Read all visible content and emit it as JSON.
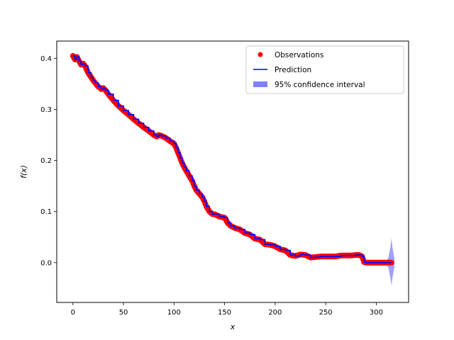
{
  "chart_data": {
    "type": "scatter",
    "title": "",
    "xlabel": "x",
    "ylabel": "f(x)",
    "xlim": [
      -16,
      332
    ],
    "ylim": [
      -0.078,
      0.434
    ],
    "xticks": [
      0,
      50,
      100,
      150,
      200,
      250,
      300
    ],
    "yticks": [
      0.0,
      0.1,
      0.2,
      0.3,
      0.4
    ],
    "xtick_labels": [
      "0",
      "50",
      "100",
      "150",
      "200",
      "250",
      "300"
    ],
    "ytick_labels": [
      "0.0",
      "0.1",
      "0.2",
      "0.3",
      "0.4"
    ],
    "grid": false,
    "legend_placement": "upper right",
    "legend": [
      {
        "name": "Observations",
        "marker": "circle",
        "color": "#ff0000"
      },
      {
        "name": "Prediction",
        "marker": "line",
        "color": "#0000ff"
      },
      {
        "name": "95% confidence interval",
        "marker": "patch",
        "color": "#8080ff"
      }
    ],
    "series": [
      {
        "name": "Observations",
        "kind": "scatter",
        "color": "#ff0000",
        "x": [
          0,
          2,
          4,
          6,
          8,
          10,
          12,
          15,
          18,
          20,
          22,
          25,
          28,
          30,
          32,
          35,
          40,
          45,
          50,
          55,
          60,
          65,
          70,
          75,
          80,
          83,
          85,
          88,
          92,
          96,
          100,
          102,
          104,
          106,
          108,
          110,
          112,
          115,
          118,
          120,
          122,
          125,
          128,
          130,
          132,
          135,
          138,
          140,
          145,
          150,
          153,
          156,
          160,
          165,
          170,
          175,
          180,
          185,
          190,
          195,
          200,
          205,
          210,
          215,
          220,
          225,
          230,
          235,
          240,
          245,
          250,
          255,
          260,
          265,
          270,
          275,
          280,
          283,
          286,
          288,
          290,
          295,
          300,
          305,
          310,
          315
        ],
        "y": [
          0.405,
          0.398,
          0.403,
          0.395,
          0.388,
          0.39,
          0.385,
          0.372,
          0.363,
          0.357,
          0.352,
          0.345,
          0.34,
          0.342,
          0.338,
          0.33,
          0.318,
          0.307,
          0.298,
          0.29,
          0.281,
          0.273,
          0.265,
          0.258,
          0.25,
          0.247,
          0.25,
          0.248,
          0.244,
          0.238,
          0.233,
          0.225,
          0.215,
          0.205,
          0.195,
          0.187,
          0.18,
          0.17,
          0.16,
          0.15,
          0.142,
          0.135,
          0.128,
          0.12,
          0.11,
          0.1,
          0.095,
          0.095,
          0.09,
          0.088,
          0.078,
          0.072,
          0.068,
          0.065,
          0.058,
          0.055,
          0.047,
          0.045,
          0.036,
          0.035,
          0.032,
          0.026,
          0.024,
          0.015,
          0.013,
          0.016,
          0.015,
          0.01,
          0.011,
          0.012,
          0.012,
          0.012,
          0.012,
          0.014,
          0.014,
          0.014,
          0.015,
          0.015,
          0.012,
          0.001,
          0.0,
          0.0,
          0.0,
          0.0,
          0.0,
          0.0
        ]
      },
      {
        "name": "Prediction",
        "kind": "line",
        "color": "#0000ff",
        "x": [
          0,
          2,
          4,
          6,
          8,
          10,
          12,
          15,
          18,
          20,
          22,
          25,
          28,
          30,
          32,
          35,
          40,
          45,
          50,
          55,
          60,
          65,
          70,
          75,
          80,
          83,
          85,
          88,
          92,
          96,
          100,
          102,
          104,
          106,
          108,
          110,
          112,
          115,
          118,
          120,
          122,
          125,
          128,
          130,
          132,
          135,
          138,
          140,
          145,
          150,
          153,
          156,
          160,
          165,
          170,
          175,
          180,
          185,
          190,
          195,
          200,
          205,
          210,
          215,
          220,
          225,
          230,
          235,
          240,
          245,
          250,
          255,
          260,
          265,
          270,
          275,
          280,
          283,
          286,
          288,
          290,
          295,
          300,
          305,
          310,
          315
        ],
        "y": [
          0.405,
          0.398,
          0.403,
          0.395,
          0.388,
          0.39,
          0.385,
          0.372,
          0.363,
          0.357,
          0.352,
          0.345,
          0.34,
          0.342,
          0.338,
          0.33,
          0.318,
          0.307,
          0.298,
          0.29,
          0.281,
          0.273,
          0.265,
          0.258,
          0.25,
          0.247,
          0.25,
          0.248,
          0.244,
          0.238,
          0.233,
          0.225,
          0.215,
          0.205,
          0.195,
          0.187,
          0.18,
          0.17,
          0.16,
          0.15,
          0.142,
          0.135,
          0.128,
          0.12,
          0.11,
          0.1,
          0.095,
          0.095,
          0.09,
          0.088,
          0.078,
          0.072,
          0.068,
          0.065,
          0.058,
          0.055,
          0.047,
          0.045,
          0.036,
          0.035,
          0.032,
          0.026,
          0.024,
          0.015,
          0.013,
          0.016,
          0.015,
          0.01,
          0.011,
          0.012,
          0.012,
          0.012,
          0.012,
          0.014,
          0.014,
          0.014,
          0.015,
          0.015,
          0.012,
          0.001,
          0.0,
          0.0,
          0.0,
          0.0,
          0.0,
          0.0
        ]
      },
      {
        "name": "95% confidence interval",
        "kind": "band",
        "color": "#8080ff",
        "x": [
          0,
          100,
          200,
          300,
          310,
          312,
          314,
          315,
          316,
          318
        ],
        "lower": [
          0.0,
          0.0,
          0.0,
          0.0,
          -0.003,
          -0.01,
          -0.03,
          -0.045,
          -0.03,
          -0.008
        ],
        "upper": [
          0.0,
          0.0,
          0.0,
          0.0,
          0.003,
          0.01,
          0.03,
          0.048,
          0.03,
          0.008
        ],
        "offset_from_prediction": true
      }
    ]
  }
}
